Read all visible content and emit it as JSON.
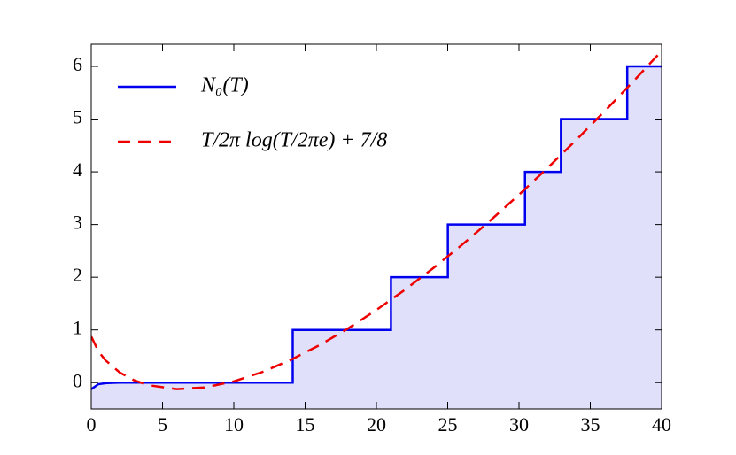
{
  "chart_data": {
    "type": "line",
    "series": [
      {
        "name": "N₀(T)",
        "color": "#0000ee",
        "dash": "solid",
        "fill": "#e0e0fa",
        "x": [
          0,
          0.5,
          1,
          1.5,
          2,
          14.13,
          14.13,
          21.02,
          21.02,
          25.01,
          25.01,
          30.42,
          30.42,
          32.94,
          32.94,
          37.59,
          37.59,
          40
        ],
        "values": [
          -0.125,
          -0.03,
          -0.01,
          -0.005,
          0,
          0,
          1,
          1,
          2,
          2,
          3,
          3,
          4,
          4,
          5,
          5,
          6,
          6
        ]
      },
      {
        "name": "T/2π log(T/2πe) + 7/8",
        "color": "#ee0000",
        "dash": "dashed",
        "x": [
          0,
          0.5,
          1,
          2,
          3,
          4,
          6,
          8,
          10,
          12,
          14,
          16,
          18,
          20,
          22,
          24,
          26,
          28,
          30,
          32,
          34,
          36,
          38,
          40
        ],
        "values": [
          0.875,
          0.594,
          0.423,
          0.192,
          0.045,
          -0.049,
          -0.124,
          -0.091,
          0.023,
          0.201,
          0.432,
          0.709,
          1.025,
          1.378,
          1.762,
          2.175,
          2.614,
          3.078,
          3.565,
          4.072,
          4.601,
          5.148,
          5.711,
          6.293
        ]
      }
    ],
    "xlim": [
      0,
      40
    ],
    "xticks": [
      0,
      5,
      10,
      15,
      20,
      25,
      30,
      35,
      40
    ],
    "ylim": [
      -0.5,
      6.42
    ],
    "yticks": [
      0,
      1,
      2,
      3,
      4,
      5,
      6
    ],
    "legend": "upper left"
  }
}
